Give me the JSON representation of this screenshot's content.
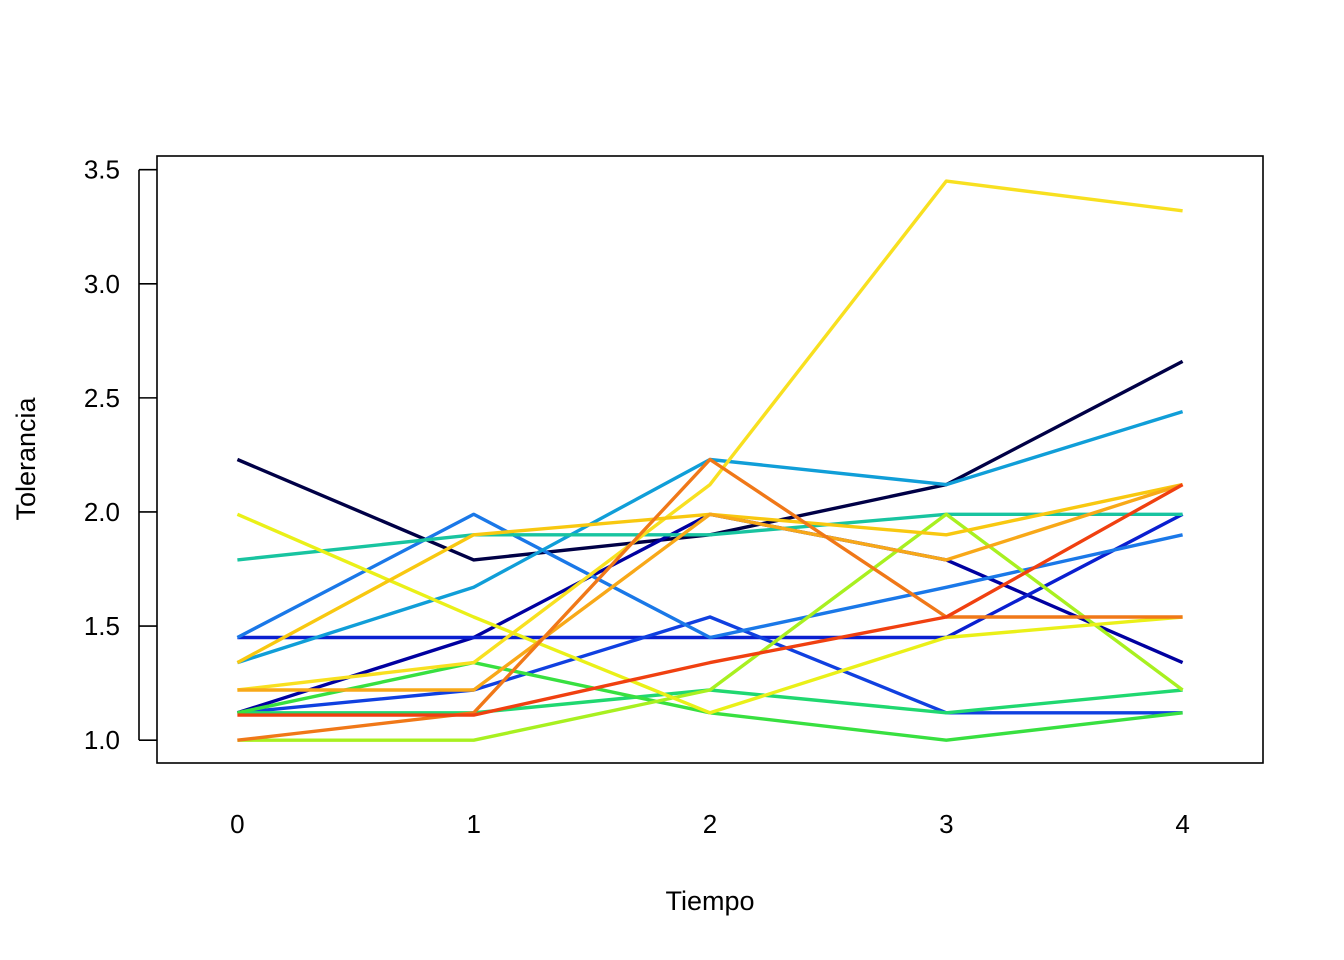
{
  "chart_data": {
    "type": "line",
    "title": "",
    "xlabel": "Tiempo",
    "ylabel": "Tolerancia",
    "x": [
      0,
      1,
      2,
      3,
      4
    ],
    "xlim": [
      -0.34,
      4.34
    ],
    "ylim": [
      0.9,
      3.56
    ],
    "yticks": [
      1.0,
      1.5,
      2.0,
      2.5,
      3.0,
      3.5
    ],
    "ytick_labels": [
      "1.0",
      "1.5",
      "2.0",
      "2.5",
      "3.0",
      "3.5"
    ],
    "xtick_labels": [
      "0",
      "1",
      "2",
      "3",
      "4"
    ],
    "grid": false,
    "legend": "none",
    "series": [
      {
        "color": "#000046",
        "values": [
          2.23,
          1.79,
          1.9,
          2.12,
          2.66
        ]
      },
      {
        "color": "#0000a0",
        "values": [
          1.12,
          1.45,
          1.99,
          1.79,
          1.34
        ]
      },
      {
        "color": "#0a1fd0",
        "values": [
          1.45,
          1.45,
          1.45,
          1.45,
          1.99
        ]
      },
      {
        "color": "#1040e0",
        "values": [
          1.12,
          1.22,
          1.54,
          1.12,
          1.12
        ]
      },
      {
        "color": "#1a78e8",
        "values": [
          1.45,
          1.99,
          1.45,
          1.67,
          1.9
        ]
      },
      {
        "color": "#109ed8",
        "values": [
          1.34,
          1.67,
          2.23,
          2.12,
          2.44
        ]
      },
      {
        "color": "#18c4a0",
        "values": [
          1.79,
          1.9,
          1.9,
          1.99,
          1.99
        ]
      },
      {
        "color": "#20d870",
        "values": [
          1.12,
          1.12,
          1.22,
          1.12,
          1.22
        ]
      },
      {
        "color": "#38e040",
        "values": [
          1.12,
          1.34,
          1.12,
          1.0,
          1.12
        ]
      },
      {
        "color": "#a8f020",
        "values": [
          1.0,
          1.0,
          1.22,
          1.99,
          1.22
        ]
      },
      {
        "color": "#eaf018",
        "values": [
          1.99,
          1.54,
          1.12,
          1.45,
          1.54
        ]
      },
      {
        "color": "#f8e020",
        "values": [
          1.22,
          1.34,
          2.12,
          3.45,
          3.32
        ]
      },
      {
        "color": "#f8c810",
        "values": [
          1.34,
          1.9,
          1.99,
          1.9,
          2.12
        ]
      },
      {
        "color": "#f8a818",
        "values": [
          1.22,
          1.22,
          1.99,
          1.79,
          2.12
        ]
      },
      {
        "color": "#f07818",
        "values": [
          1.0,
          1.12,
          2.23,
          1.54,
          1.54
        ]
      },
      {
        "color": "#f04010",
        "values": [
          1.11,
          1.11,
          1.34,
          1.54,
          2.12
        ]
      }
    ]
  }
}
